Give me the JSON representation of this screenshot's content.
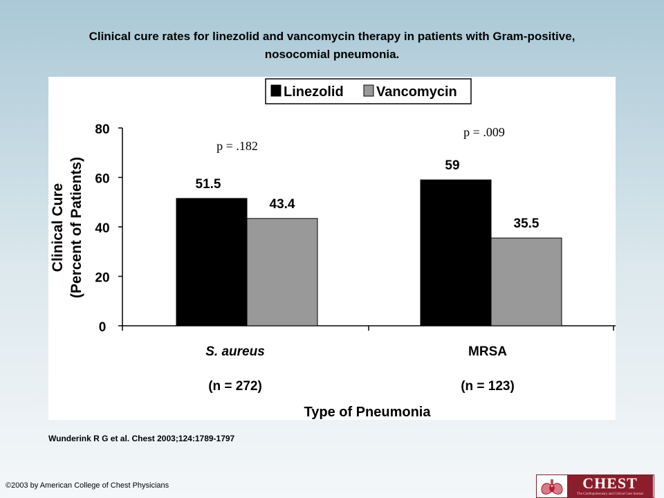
{
  "title": {
    "line1": "Clinical cure rates for linezolid and vancomycin therapy in patients with Gram-positive,",
    "line2": "nosocomial pneumonia."
  },
  "citation": "Wunderink R G et al. Chest 2003;124:1789-1797",
  "copyright": "©2003 by American College of Chest Physicians",
  "logo": {
    "word": "CHEST",
    "subtitle": "The Cardiopulmonary and Critical Care Journal"
  },
  "colors": {
    "linezolid": "#000000",
    "vancomycin": "#999999"
  },
  "chart_data": {
    "type": "bar",
    "title": "",
    "xlabel": "Type of Pneumonia",
    "ylabel_line1": "Clinical Cure",
    "ylabel_line2": "(Percent of Patients)",
    "ylim": [
      0,
      80
    ],
    "yticks": [
      0,
      20,
      40,
      60,
      80
    ],
    "grid": false,
    "legend_position": "top-center",
    "categories": [
      "S. aureus",
      "MRSA"
    ],
    "category_counts": [
      "(n = 272)",
      "(n = 123)"
    ],
    "series": [
      {
        "name": "Linezolid",
        "values": [
          51.5,
          59
        ],
        "labels": [
          "51.5",
          "59"
        ]
      },
      {
        "name": "Vancomycin",
        "values": [
          43.4,
          35.5
        ],
        "labels": [
          "43.4",
          "35.5"
        ]
      }
    ],
    "p_values": [
      "p = .182",
      "p = .009"
    ]
  }
}
